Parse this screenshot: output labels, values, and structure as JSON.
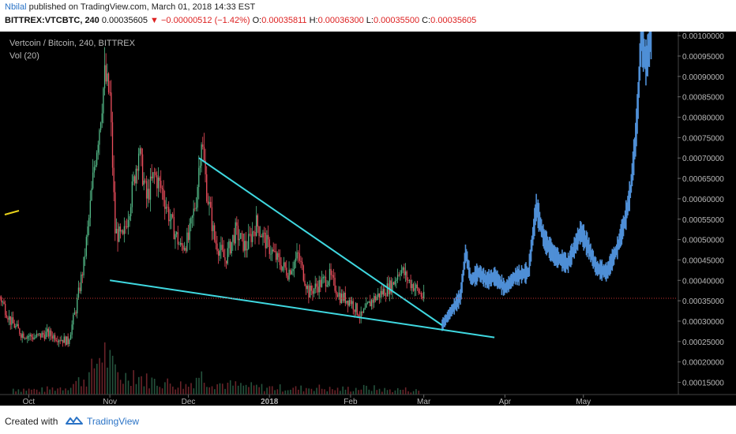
{
  "header": {
    "author": "Nbilal",
    "published_text": "published on TradingView.com, March 01, 2018 14:33 EST",
    "symbol": "BITTREX:VTCBTC, 240",
    "last": "0.00035605",
    "change": "−0.00000512 (−1.42%)",
    "open_label": "O:",
    "open_value": "0.00035811",
    "high_label": "H:",
    "high_value": "0.00036300",
    "low_label": "L:",
    "low_value": "0.00035500",
    "close_label": "C:",
    "close_value": "0.00035605"
  },
  "footer": {
    "created_with": "Created with",
    "brand": "TradingView"
  },
  "icons": {
    "down_arrow": "down-triangle-icon",
    "logo": "tradingview-cloud-icon"
  },
  "colors": {
    "background": "#000000",
    "axis_text": "#b8b8b8",
    "up": "#53b987",
    "down": "#eb4d5c",
    "projection": "#4f8fd6",
    "trendline": "#3fd8e0",
    "marker": "#e8d21a",
    "price_line": "#c83232"
  },
  "chart_data": {
    "type": "candlestick",
    "title": "Vertcoin / Bitcoin, 240, BITTREX",
    "indicator": "Vol (20)",
    "y_ticks": [
      "0.00015000",
      "0.00020000",
      "0.00025000",
      "0.00030000",
      "0.00035000",
      "0.00040000",
      "0.00045000",
      "0.00050000",
      "0.00055000",
      "0.00060000",
      "0.00065000",
      "0.00070000",
      "0.00075000",
      "0.00080000",
      "0.00085000",
      "0.00090000",
      "0.00095000",
      "0.00100000"
    ],
    "y_tick_values": [
      0.00015,
      0.0002,
      0.00025,
      0.0003,
      0.00035,
      0.0004,
      0.00045,
      0.0005,
      0.00055,
      0.0006,
      0.00065,
      0.0007,
      0.00075,
      0.0008,
      0.00085,
      0.0009,
      0.00095,
      0.001
    ],
    "ylim": [
      0.00012,
      0.00101
    ],
    "x_ticks": [
      "Oct",
      "Nov",
      "Dec",
      "2018",
      "Feb",
      "Mar",
      "Apr",
      "May"
    ],
    "x_tick_dates": [
      "2017-10-01",
      "2017-11-01",
      "2017-12-01",
      "2018-01-01",
      "2018-02-01",
      "2018-03-01",
      "2018-04-01",
      "2018-05-01"
    ],
    "xlim": [
      "2017-09-20",
      "2018-06-06"
    ],
    "last_price": 0.00035605,
    "price_path": [
      [
        "2017-09-20",
        0.00036
      ],
      [
        "2017-09-24",
        0.0003
      ],
      [
        "2017-09-28",
        0.00027
      ],
      [
        "2017-10-03",
        0.00026
      ],
      [
        "2017-10-08",
        0.00027
      ],
      [
        "2017-10-12",
        0.00026
      ],
      [
        "2017-10-16",
        0.00025
      ],
      [
        "2017-10-19",
        0.00033
      ],
      [
        "2017-10-22",
        0.00044
      ],
      [
        "2017-10-24",
        0.00055
      ],
      [
        "2017-10-26",
        0.00068
      ],
      [
        "2017-10-28",
        0.00078
      ],
      [
        "2017-10-30",
        0.0009
      ],
      [
        "2017-11-01",
        0.00085
      ],
      [
        "2017-11-03",
        0.00052
      ],
      [
        "2017-11-06",
        0.0005
      ],
      [
        "2017-11-09",
        0.0006
      ],
      [
        "2017-11-12",
        0.00072
      ],
      [
        "2017-11-15",
        0.0006
      ],
      [
        "2017-11-18",
        0.00066
      ],
      [
        "2017-11-21",
        0.00062
      ],
      [
        "2017-11-24",
        0.00055
      ],
      [
        "2017-11-28",
        0.00048
      ],
      [
        "2017-12-01",
        0.0005
      ],
      [
        "2017-12-04",
        0.0006
      ],
      [
        "2017-12-06",
        0.00075
      ],
      [
        "2017-12-08",
        0.00062
      ],
      [
        "2017-12-11",
        0.0005
      ],
      [
        "2017-12-15",
        0.00045
      ],
      [
        "2017-12-19",
        0.00052
      ],
      [
        "2017-12-23",
        0.00048
      ],
      [
        "2017-12-27",
        0.00054
      ],
      [
        "2017-12-31",
        0.00049
      ],
      [
        "2018-01-04",
        0.00045
      ],
      [
        "2018-01-08",
        0.00042
      ],
      [
        "2018-01-12",
        0.00046
      ],
      [
        "2018-01-16",
        0.00037
      ],
      [
        "2018-01-20",
        0.00039
      ],
      [
        "2018-01-24",
        0.00041
      ],
      [
        "2018-01-28",
        0.00036
      ],
      [
        "2018-02-01",
        0.00035
      ],
      [
        "2018-02-05",
        0.00031
      ],
      [
        "2018-02-09",
        0.00035
      ],
      [
        "2018-02-13",
        0.00037
      ],
      [
        "2018-02-17",
        0.00039
      ],
      [
        "2018-02-20",
        0.00043
      ],
      [
        "2018-02-23",
        0.0004
      ],
      [
        "2018-02-26",
        0.00038
      ],
      [
        "2018-03-01",
        0.000356
      ]
    ],
    "volume_bars": [
      [
        "2017-09-25",
        0.08
      ],
      [
        "2017-10-05",
        0.06
      ],
      [
        "2017-10-15",
        0.1
      ],
      [
        "2017-10-20",
        0.18
      ],
      [
        "2017-10-24",
        0.25
      ],
      [
        "2017-10-27",
        0.45
      ],
      [
        "2017-10-29",
        0.6
      ],
      [
        "2017-10-31",
        0.5
      ],
      [
        "2017-11-02",
        0.35
      ],
      [
        "2017-11-06",
        0.22
      ],
      [
        "2017-11-10",
        0.3
      ],
      [
        "2017-11-14",
        0.2
      ],
      [
        "2017-11-18",
        0.18
      ],
      [
        "2017-11-24",
        0.15
      ],
      [
        "2017-12-01",
        0.12
      ],
      [
        "2017-12-05",
        0.28
      ],
      [
        "2017-12-07",
        0.22
      ],
      [
        "2017-12-12",
        0.15
      ],
      [
        "2017-12-20",
        0.12
      ],
      [
        "2017-12-28",
        0.1
      ],
      [
        "2018-01-05",
        0.09
      ],
      [
        "2018-01-12",
        0.08
      ],
      [
        "2018-01-18",
        0.1
      ],
      [
        "2018-01-25",
        0.07
      ],
      [
        "2018-02-02",
        0.08
      ],
      [
        "2018-02-08",
        0.09
      ],
      [
        "2018-02-15",
        0.06
      ],
      [
        "2018-02-21",
        0.07
      ],
      [
        "2018-02-27",
        0.05
      ]
    ],
    "projection_path": [
      [
        "2018-03-08",
        0.00029
      ],
      [
        "2018-03-12",
        0.00033
      ],
      [
        "2018-03-15",
        0.00036
      ],
      [
        "2018-03-17",
        0.00047
      ],
      [
        "2018-03-19",
        0.0004
      ],
      [
        "2018-03-22",
        0.00042
      ],
      [
        "2018-03-25",
        0.0004
      ],
      [
        "2018-03-28",
        0.00041
      ],
      [
        "2018-04-01",
        0.00038
      ],
      [
        "2018-04-05",
        0.00041
      ],
      [
        "2018-04-10",
        0.00042
      ],
      [
        "2018-04-13",
        0.00058
      ],
      [
        "2018-04-16",
        0.0005
      ],
      [
        "2018-04-20",
        0.00046
      ],
      [
        "2018-04-25",
        0.00044
      ],
      [
        "2018-04-30",
        0.00052
      ],
      [
        "2018-05-03",
        0.00048
      ],
      [
        "2018-05-06",
        0.00043
      ],
      [
        "2018-05-10",
        0.00042
      ],
      [
        "2018-05-14",
        0.00048
      ],
      [
        "2018-05-17",
        0.00055
      ],
      [
        "2018-05-19",
        0.00062
      ],
      [
        "2018-05-21",
        0.00075
      ],
      [
        "2018-05-22",
        0.00085
      ],
      [
        "2018-05-23",
        0.001
      ],
      [
        "2018-05-25",
        0.00093
      ],
      [
        "2018-05-27",
        0.00101
      ]
    ],
    "trendlines": [
      {
        "from": [
          "2017-12-05",
          0.0007
        ],
        "to": [
          "2018-03-08",
          0.00029
        ]
      },
      {
        "from": [
          "2017-11-01",
          0.0004
        ],
        "to": [
          "2018-03-28",
          0.00026
        ]
      }
    ]
  }
}
